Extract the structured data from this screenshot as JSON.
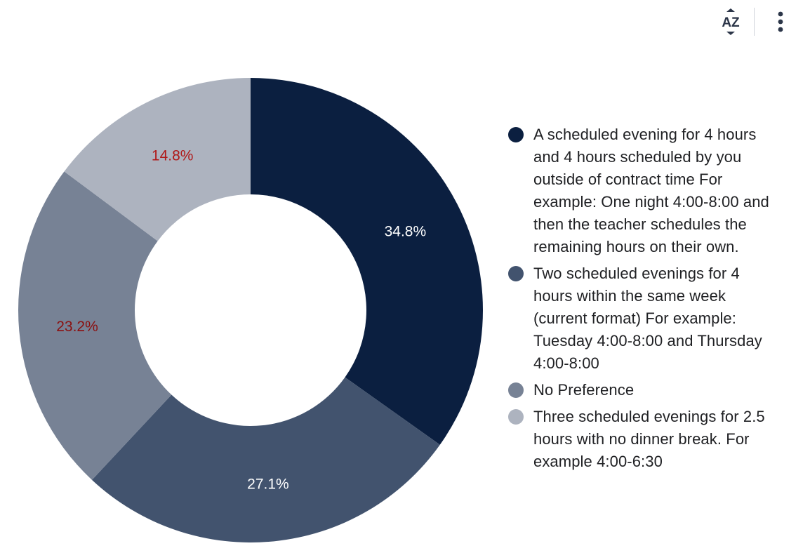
{
  "toolbar": {
    "sort_icon": "sort-az-icon",
    "sort_label": "AZ",
    "menu_icon": "more-vertical-icon"
  },
  "chart_data": {
    "type": "pie",
    "donut": true,
    "legend_position": "right",
    "slices": [
      {
        "label": "A scheduled evening for 4 hours and 4 hours scheduled by you outside of contract time For example: One night 4:00-8:00 and then the teacher schedules the remaining hours on their own.",
        "value": 34.8,
        "display": "34.8%",
        "color": "#0b1f40",
        "label_color": "#ffffff"
      },
      {
        "label": "Two scheduled evenings for 4 hours within the same week (current format) For example: Tuesday 4:00-8:00 and Thursday 4:00-8:00",
        "value": 27.1,
        "display": "27.1%",
        "color": "#42536e",
        "label_color": "#ffffff"
      },
      {
        "label": "No Preference",
        "value": 23.2,
        "display": "23.2%",
        "color": "#778295",
        "label_color": "#8b1010"
      },
      {
        "label": "Three scheduled evenings for 2.5 hours with no dinner break. For example 4:00-6:30",
        "value": 14.8,
        "display": "14.8%",
        "color": "#adb3bf",
        "label_color": "#b01818"
      }
    ]
  }
}
